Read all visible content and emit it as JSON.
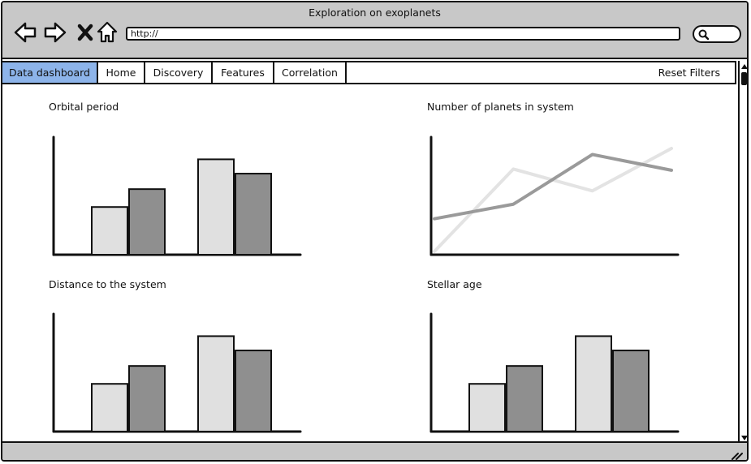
{
  "window": {
    "title": "Exploration on exoplanets"
  },
  "toolbar": {
    "url": "http://",
    "icons": [
      "back-arrow-icon",
      "forward-arrow-icon",
      "close-x-icon",
      "home-icon",
      "search-icon"
    ]
  },
  "tabs": [
    {
      "label": "Data dashboard",
      "active": true
    },
    {
      "label": "Home",
      "active": false
    },
    {
      "label": "Discovery",
      "active": false
    },
    {
      "label": "Features",
      "active": false
    },
    {
      "label": "Correlation",
      "active": false
    }
  ],
  "reset_label": "Reset Filters",
  "colors": {
    "active_tab": "#8db4ea",
    "chrome": "#c8c8c8",
    "light_bar": "#e0e0e0",
    "dark_bar": "#8f8f8f",
    "light_line": "#e3e3e3",
    "dark_line": "#9a9a9a"
  },
  "chart_data": [
    {
      "type": "bar",
      "title": "Orbital period",
      "categories": [
        "",
        ""
      ],
      "series": [
        {
          "values": [
            40,
            55
          ]
        },
        {
          "values": [
            80,
            68
          ]
        }
      ],
      "ylim": [
        0,
        100
      ],
      "grid": false
    },
    {
      "type": "line",
      "title": "Number of planets in system",
      "x": [
        0,
        1,
        2,
        3
      ],
      "series": [
        {
          "values": [
            0,
            68,
            50,
            85
          ]
        },
        {
          "values": [
            27,
            39,
            80,
            67
          ]
        }
      ],
      "ylim": [
        0,
        85
      ],
      "grid": false
    },
    {
      "type": "bar",
      "title": "Distance to the system",
      "categories": [
        "",
        ""
      ],
      "series": [
        {
          "values": [
            40,
            55
          ]
        },
        {
          "values": [
            80,
            68
          ]
        }
      ],
      "ylim": [
        0,
        100
      ],
      "grid": false
    },
    {
      "type": "bar",
      "title": "Stellar age",
      "categories": [
        "",
        ""
      ],
      "series": [
        {
          "values": [
            40,
            55
          ]
        },
        {
          "values": [
            80,
            68
          ]
        }
      ],
      "ylim": [
        0,
        100
      ],
      "grid": false
    }
  ]
}
